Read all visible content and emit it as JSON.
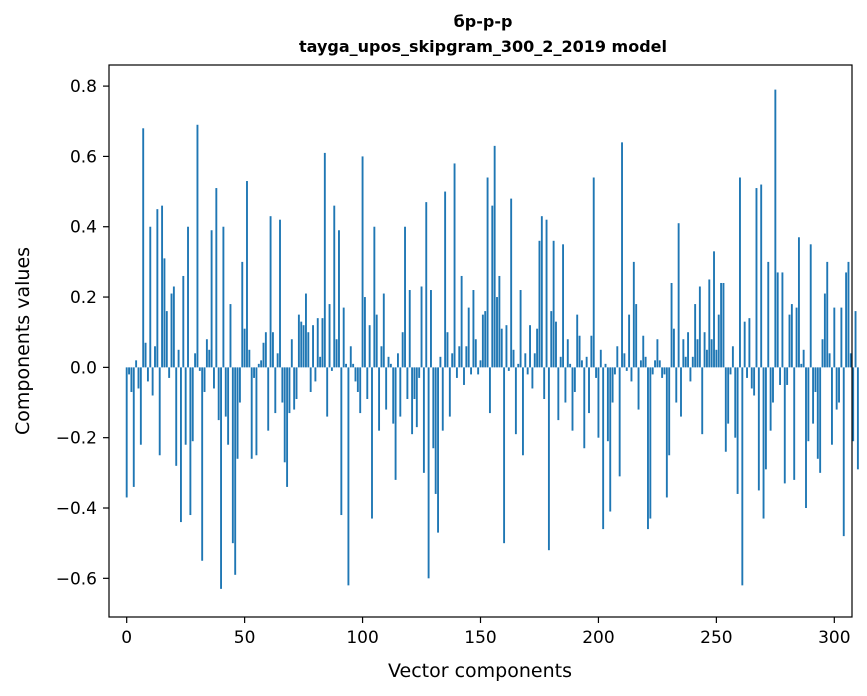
{
  "chart_data": {
    "type": "bar",
    "title_line1": "бр-р-р",
    "title_line2": "tayga_upos_skipgram_300_2_2019 model",
    "xlabel": "Vector components",
    "ylabel": "Components values",
    "xlim": [
      -7.5,
      307.5
    ],
    "ylim": [
      -0.71,
      0.86
    ],
    "xticks": [
      0,
      50,
      100,
      150,
      200,
      250,
      300
    ],
    "xtick_labels": [
      "0",
      "50",
      "100",
      "150",
      "200",
      "250",
      "300"
    ],
    "yticks": [
      -0.6,
      -0.4,
      -0.2,
      0.0,
      0.2,
      0.4,
      0.6,
      0.8
    ],
    "ytick_labels": [
      "−0.6",
      "−0.4",
      "−0.2",
      "0.0",
      "0.2",
      "0.4",
      "0.6",
      "0.8"
    ],
    "bar_color": "#1f77b4",
    "values": [
      -0.37,
      -0.02,
      -0.07,
      -0.34,
      0.02,
      -0.06,
      -0.22,
      0.68,
      0.07,
      -0.04,
      0.4,
      -0.08,
      0.06,
      0.45,
      -0.25,
      0.46,
      0.31,
      0.16,
      -0.03,
      0.21,
      0.23,
      -0.28,
      0.05,
      -0.44,
      0.26,
      -0.22,
      0.4,
      -0.42,
      -0.21,
      0.04,
      0.69,
      -0.01,
      -0.55,
      -0.07,
      0.08,
      0.05,
      0.39,
      -0.06,
      0.51,
      -0.15,
      -0.63,
      0.4,
      -0.14,
      -0.22,
      0.18,
      -0.5,
      -0.59,
      -0.26,
      -0.1,
      0.3,
      0.11,
      0.53,
      0.05,
      -0.26,
      -0.03,
      -0.25,
      0.01,
      0.02,
      0.07,
      0.1,
      -0.18,
      0.43,
      0.1,
      -0.13,
      0.04,
      0.42,
      -0.1,
      -0.27,
      -0.34,
      -0.13,
      0.08,
      -0.12,
      -0.09,
      0.15,
      0.13,
      0.12,
      0.21,
      0.1,
      -0.07,
      0.12,
      -0.04,
      0.14,
      0.03,
      0.14,
      0.61,
      -0.14,
      0.18,
      -0.01,
      0.46,
      0.08,
      0.39,
      -0.42,
      0.17,
      0.01,
      -0.62,
      0.06,
      0.01,
      -0.04,
      -0.07,
      -0.13,
      0.6,
      0.2,
      -0.09,
      0.12,
      -0.43,
      0.4,
      0.15,
      -0.18,
      0.06,
      0.21,
      -0.12,
      0.03,
      0.01,
      -0.16,
      -0.32,
      0.04,
      -0.14,
      0.1,
      0.4,
      -0.09,
      0.22,
      -0.19,
      -0.09,
      -0.17,
      -0.03,
      0.23,
      -0.3,
      0.47,
      -0.6,
      0.22,
      -0.23,
      -0.36,
      -0.47,
      0.03,
      -0.18,
      0.5,
      0.1,
      -0.14,
      0.04,
      0.58,
      -0.03,
      0.06,
      0.26,
      -0.05,
      0.06,
      0.17,
      -0.02,
      0.22,
      0.08,
      -0.02,
      0.02,
      0.15,
      0.16,
      0.54,
      -0.13,
      0.46,
      0.63,
      0.2,
      0.26,
      0.11,
      -0.5,
      0.12,
      -0.01,
      0.48,
      0.05,
      -0.19,
      0.01,
      0.22,
      -0.25,
      0.04,
      -0.02,
      0.12,
      -0.06,
      0.04,
      0.11,
      0.36,
      0.43,
      -0.09,
      0.42,
      -0.52,
      0.16,
      0.36,
      0.13,
      -0.15,
      0.03,
      0.35,
      -0.1,
      0.08,
      0.01,
      -0.18,
      -0.07,
      0.15,
      0.09,
      0.02,
      -0.23,
      0.03,
      -0.13,
      0.09,
      0.54,
      -0.03,
      -0.2,
      0.05,
      -0.46,
      0.01,
      -0.21,
      -0.41,
      -0.1,
      -0.02,
      0.06,
      -0.31,
      0.64,
      0.04,
      -0.01,
      0.15,
      -0.04,
      0.3,
      0.18,
      -0.12,
      0.02,
      0.09,
      0.03,
      -0.46,
      -0.43,
      -0.02,
      0.02,
      0.08,
      0.02,
      -0.03,
      -0.02,
      -0.37,
      -0.25,
      0.24,
      0.11,
      -0.1,
      0.41,
      -0.14,
      0.08,
      0.03,
      0.1,
      -0.04,
      0.03,
      0.18,
      0.08,
      0.23,
      -0.19,
      0.1,
      0.05,
      0.25,
      0.08,
      0.33,
      0.05,
      0.15,
      0.24,
      0.24,
      -0.24,
      -0.16,
      -0.02,
      0.06,
      -0.2,
      -0.36,
      0.54,
      -0.62,
      0.13,
      -0.03,
      0.14,
      -0.06,
      -0.08,
      0.51,
      -0.35,
      0.52,
      -0.43,
      -0.29,
      0.3,
      -0.18,
      -0.1,
      0.79,
      0.27,
      -0.05,
      0.27,
      -0.33,
      -0.05,
      0.15,
      0.18,
      -0.32,
      0.17,
      0.37,
      0.01,
      0.05,
      -0.4,
      -0.21,
      0.35,
      -0.16,
      -0.07,
      -0.26,
      -0.3,
      0.08,
      0.21,
      0.3,
      0.04,
      -0.22,
      0.17,
      -0.12,
      -0.1,
      0.17,
      -0.48,
      0.27,
      0.3,
      0.04,
      -0.21,
      0.16,
      -0.29
    ]
  }
}
